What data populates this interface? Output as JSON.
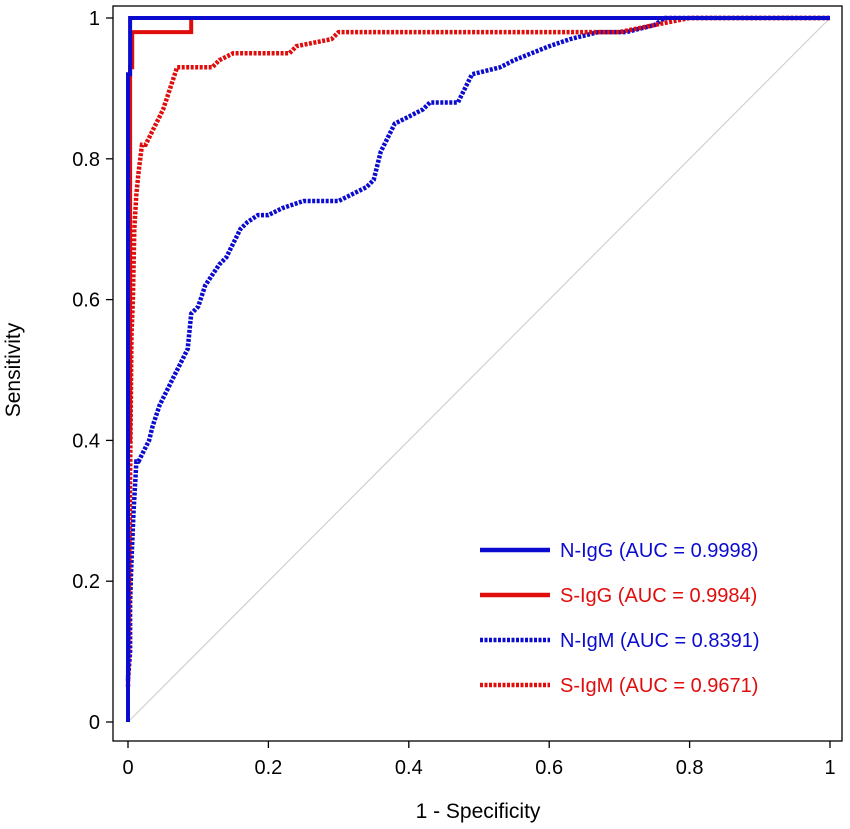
{
  "chart_data": {
    "type": "line",
    "title": "",
    "xlabel": "1 - Specificity",
    "ylabel": "Sensitivity",
    "xlim": [
      0,
      1
    ],
    "ylim": [
      0,
      1
    ],
    "x_ticks": [
      "0",
      "0.2",
      "0.4",
      "0.6",
      "0.8",
      "1"
    ],
    "y_ticks": [
      "0",
      "0.2",
      "0.4",
      "0.6",
      "0.8",
      "1"
    ],
    "grid": false,
    "legend_position": "bottom-right",
    "reference_line": {
      "from": [
        0,
        0
      ],
      "to": [
        1,
        1
      ],
      "color": "#d0d0d0"
    },
    "series": [
      {
        "name": "N-IgG (AUC = 0.9998)",
        "color": "#0b0bd0",
        "style": "solid",
        "x": [
          0,
          0,
          0.003,
          0.003,
          0.003,
          0.09,
          1
        ],
        "y": [
          0,
          0.92,
          0.92,
          0.97,
          1.0,
          1.0,
          1.0
        ]
      },
      {
        "name": "S-IgG (AUC = 0.9984)",
        "color": "#e00d0d",
        "style": "solid",
        "x": [
          0,
          0,
          0.003,
          0.003,
          0.006,
          0.006,
          0.09,
          0.09,
          0.74,
          0.74,
          1
        ],
        "y": [
          0,
          0.4,
          0.4,
          0.93,
          0.93,
          0.98,
          0.98,
          1.0,
          1.0,
          1.0,
          1.0
        ]
      },
      {
        "name": "N-IgM (AUC = 0.8391)",
        "color": "#0b0bd0",
        "style": "dotted",
        "x": [
          0,
          0.003,
          0.003,
          0.005,
          0.008,
          0.012,
          0.015,
          0.03,
          0.035,
          0.045,
          0.055,
          0.065,
          0.075,
          0.085,
          0.09,
          0.1,
          0.11,
          0.13,
          0.14,
          0.145,
          0.15,
          0.16,
          0.17,
          0.185,
          0.2,
          0.22,
          0.25,
          0.3,
          0.32,
          0.34,
          0.35,
          0.355,
          0.36,
          0.38,
          0.4,
          0.42,
          0.43,
          0.47,
          0.49,
          0.53,
          0.55,
          0.6,
          0.63,
          0.67,
          0.71,
          0.75,
          0.765,
          0.78,
          1.0
        ],
        "y": [
          0.06,
          0.1,
          0.17,
          0.23,
          0.3,
          0.37,
          0.37,
          0.4,
          0.42,
          0.45,
          0.47,
          0.49,
          0.51,
          0.53,
          0.58,
          0.59,
          0.62,
          0.65,
          0.66,
          0.67,
          0.68,
          0.7,
          0.71,
          0.72,
          0.72,
          0.73,
          0.74,
          0.74,
          0.75,
          0.76,
          0.77,
          0.79,
          0.81,
          0.85,
          0.86,
          0.87,
          0.88,
          0.88,
          0.92,
          0.93,
          0.94,
          0.96,
          0.97,
          0.98,
          0.98,
          0.99,
          1.0,
          1.0,
          1.0
        ]
      },
      {
        "name": "S-IgM (AUC = 0.9671)",
        "color": "#e00d0d",
        "style": "dotted",
        "x": [
          0,
          0.003,
          0.005,
          0.007,
          0.009,
          0.012,
          0.015,
          0.02,
          0.025,
          0.03,
          0.035,
          0.04,
          0.045,
          0.05,
          0.06,
          0.07,
          0.09,
          0.12,
          0.13,
          0.15,
          0.19,
          0.23,
          0.24,
          0.29,
          0.3,
          0.32,
          0.4,
          0.5,
          0.6,
          0.7,
          0.75,
          0.8,
          1.0
        ],
        "y": [
          0.05,
          0.35,
          0.55,
          0.6,
          0.7,
          0.75,
          0.78,
          0.82,
          0.82,
          0.83,
          0.84,
          0.85,
          0.86,
          0.87,
          0.9,
          0.93,
          0.93,
          0.93,
          0.94,
          0.95,
          0.95,
          0.95,
          0.96,
          0.97,
          0.98,
          0.98,
          0.98,
          0.98,
          0.98,
          0.98,
          0.99,
          1.0,
          1.0
        ]
      }
    ]
  }
}
